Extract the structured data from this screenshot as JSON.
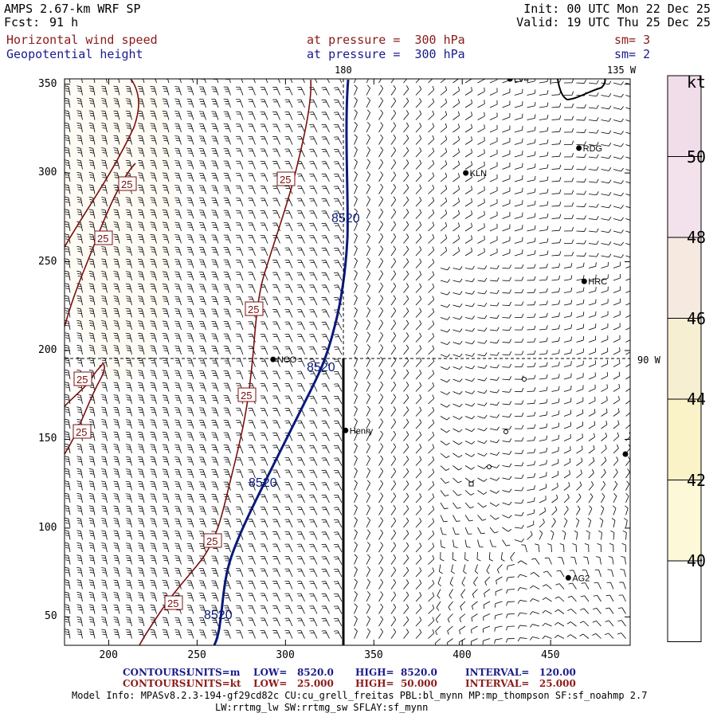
{
  "header": {
    "model": "AMPS 2.67-km WRF SP",
    "fcst_label": "Fcst:",
    "fcst_value": "91 h",
    "init": "Init: 00 UTC Mon 22 Dec 25",
    "valid": "Valid: 19 UTC Thu 25 Dec 25",
    "field1_name": "Horizontal wind speed",
    "field1_level": "at pressure =  300 hPa",
    "field1_sm": "sm= 3",
    "field2_name": "Geopotential height",
    "field2_level": "at pressure =  300 hPa",
    "field2_sm": "sm= 2"
  },
  "map": {
    "meridian_180": "180",
    "meridian_135w": "135 W",
    "meridian_90w": "90 W",
    "x_ticks": [
      "200",
      "250",
      "300",
      "350",
      "400",
      "450"
    ],
    "y_ticks": [
      "50",
      "100",
      "150",
      "200",
      "250",
      "300",
      "350"
    ],
    "stations": [
      {
        "name": "LV4",
        "x": 427,
        "y": 353
      },
      {
        "name": "RDG",
        "x": 466,
        "y": 314
      },
      {
        "name": "KLN",
        "x": 402,
        "y": 300
      },
      {
        "name": "HRC",
        "x": 469,
        "y": 239
      },
      {
        "name": "NCO",
        "x": 293,
        "y": 195
      },
      {
        "name": "Henry",
        "x": 334,
        "y": 155
      },
      {
        "name": "AG2",
        "x": 460,
        "y": 72
      }
    ],
    "height_contour_label": "8520",
    "speed_contour_label": "25"
  },
  "colorbar": {
    "unit": "kt",
    "labels": [
      "50",
      "48",
      "46",
      "44",
      "42",
      "40"
    ],
    "colors": [
      "#f1dcea",
      "#f3e2ec",
      "#f6e9df",
      "#f7efd2",
      "#fbf3c8",
      "#fdf8d8",
      "#ffffff"
    ]
  },
  "footer": {
    "line1_label": "CONTOURS:",
    "line1_units": "UNITS=m",
    "line1_low": "LOW=   8520.0",
    "line1_high": "HIGH=  8520.0",
    "line1_interval": "INTERVAL=   120.00",
    "line2_label": "CONTOURS:",
    "line2_units": "UNITS=kt",
    "line2_low": "LOW=   25.000",
    "line2_high": "HIGH=  50.000",
    "line2_interval": "INTERVAL=   25.000",
    "model_info": "Model Info: MPASv8.2.3-194-gf29cd82c CU:cu_grell_freitas PBL:bl_mynn MP:mp_thompson SF:sf_noahmp 2.7",
    "model_info2": "LW:rrtmg_lw SW:rrtmg_sw SFLAY:sf_mynn"
  }
}
